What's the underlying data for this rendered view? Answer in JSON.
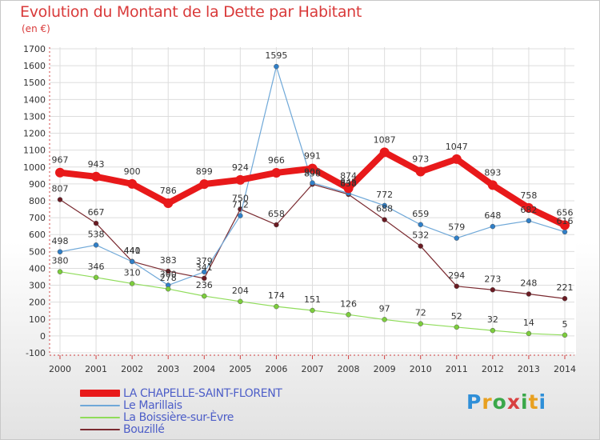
{
  "title": "Evolution du Montant de la Dette par Habitant",
  "subtitle": "(en €)",
  "logo": {
    "text": "Proxiti",
    "colors": [
      "#2f8fd8",
      "#e8a020",
      "#3aa84a",
      "#d84040",
      "#3aa84a",
      "#e8a020",
      "#2f8fd8"
    ]
  },
  "chart_data": {
    "type": "line",
    "x": [
      "2000",
      "2001",
      "2002",
      "2003",
      "2004",
      "2005",
      "2006",
      "2007",
      "2008",
      "2009",
      "2010",
      "2011",
      "2012",
      "2013",
      "2014"
    ],
    "ylim": [
      -100,
      1700
    ],
    "yticks": [
      -100,
      0,
      100,
      200,
      300,
      400,
      500,
      600,
      700,
      800,
      900,
      1000,
      1100,
      1200,
      1300,
      1400,
      1500,
      1600,
      1700
    ],
    "grid": true,
    "legend_position": "bottom-left",
    "series": [
      {
        "name": "LA CHAPELLE-SAINT-FLORENT",
        "color": "#e8191a",
        "marker": "#e8191a",
        "width": 8,
        "values": [
          967,
          943,
          900,
          786,
          899,
          924,
          966,
          991,
          874,
          1087,
          973,
          1047,
          893,
          758,
          656
        ]
      },
      {
        "name": "Le Marillais",
        "color": "#6fa8d8",
        "marker": "#2f7fc8",
        "width": 1.2,
        "values": [
          498,
          538,
          440,
          300,
          379,
          712,
          1595,
          906,
          845,
          772,
          659,
          579,
          648,
          682,
          616
        ]
      },
      {
        "name": "La Boissière-sur-Èvre",
        "color": "#8fdc5a",
        "marker": "#7ccd3c",
        "width": 1.2,
        "values": [
          380,
          346,
          310,
          278,
          236,
          204,
          174,
          151,
          126,
          97,
          72,
          52,
          32,
          14,
          5
        ]
      },
      {
        "name": "Bouzillé",
        "color": "#7a2a30",
        "marker": "#6a1a22",
        "width": 1.2,
        "values": [
          807,
          667,
          441,
          383,
          341,
          750,
          658,
          898,
          838,
          688,
          532,
          294,
          273,
          248,
          221
        ]
      }
    ]
  }
}
